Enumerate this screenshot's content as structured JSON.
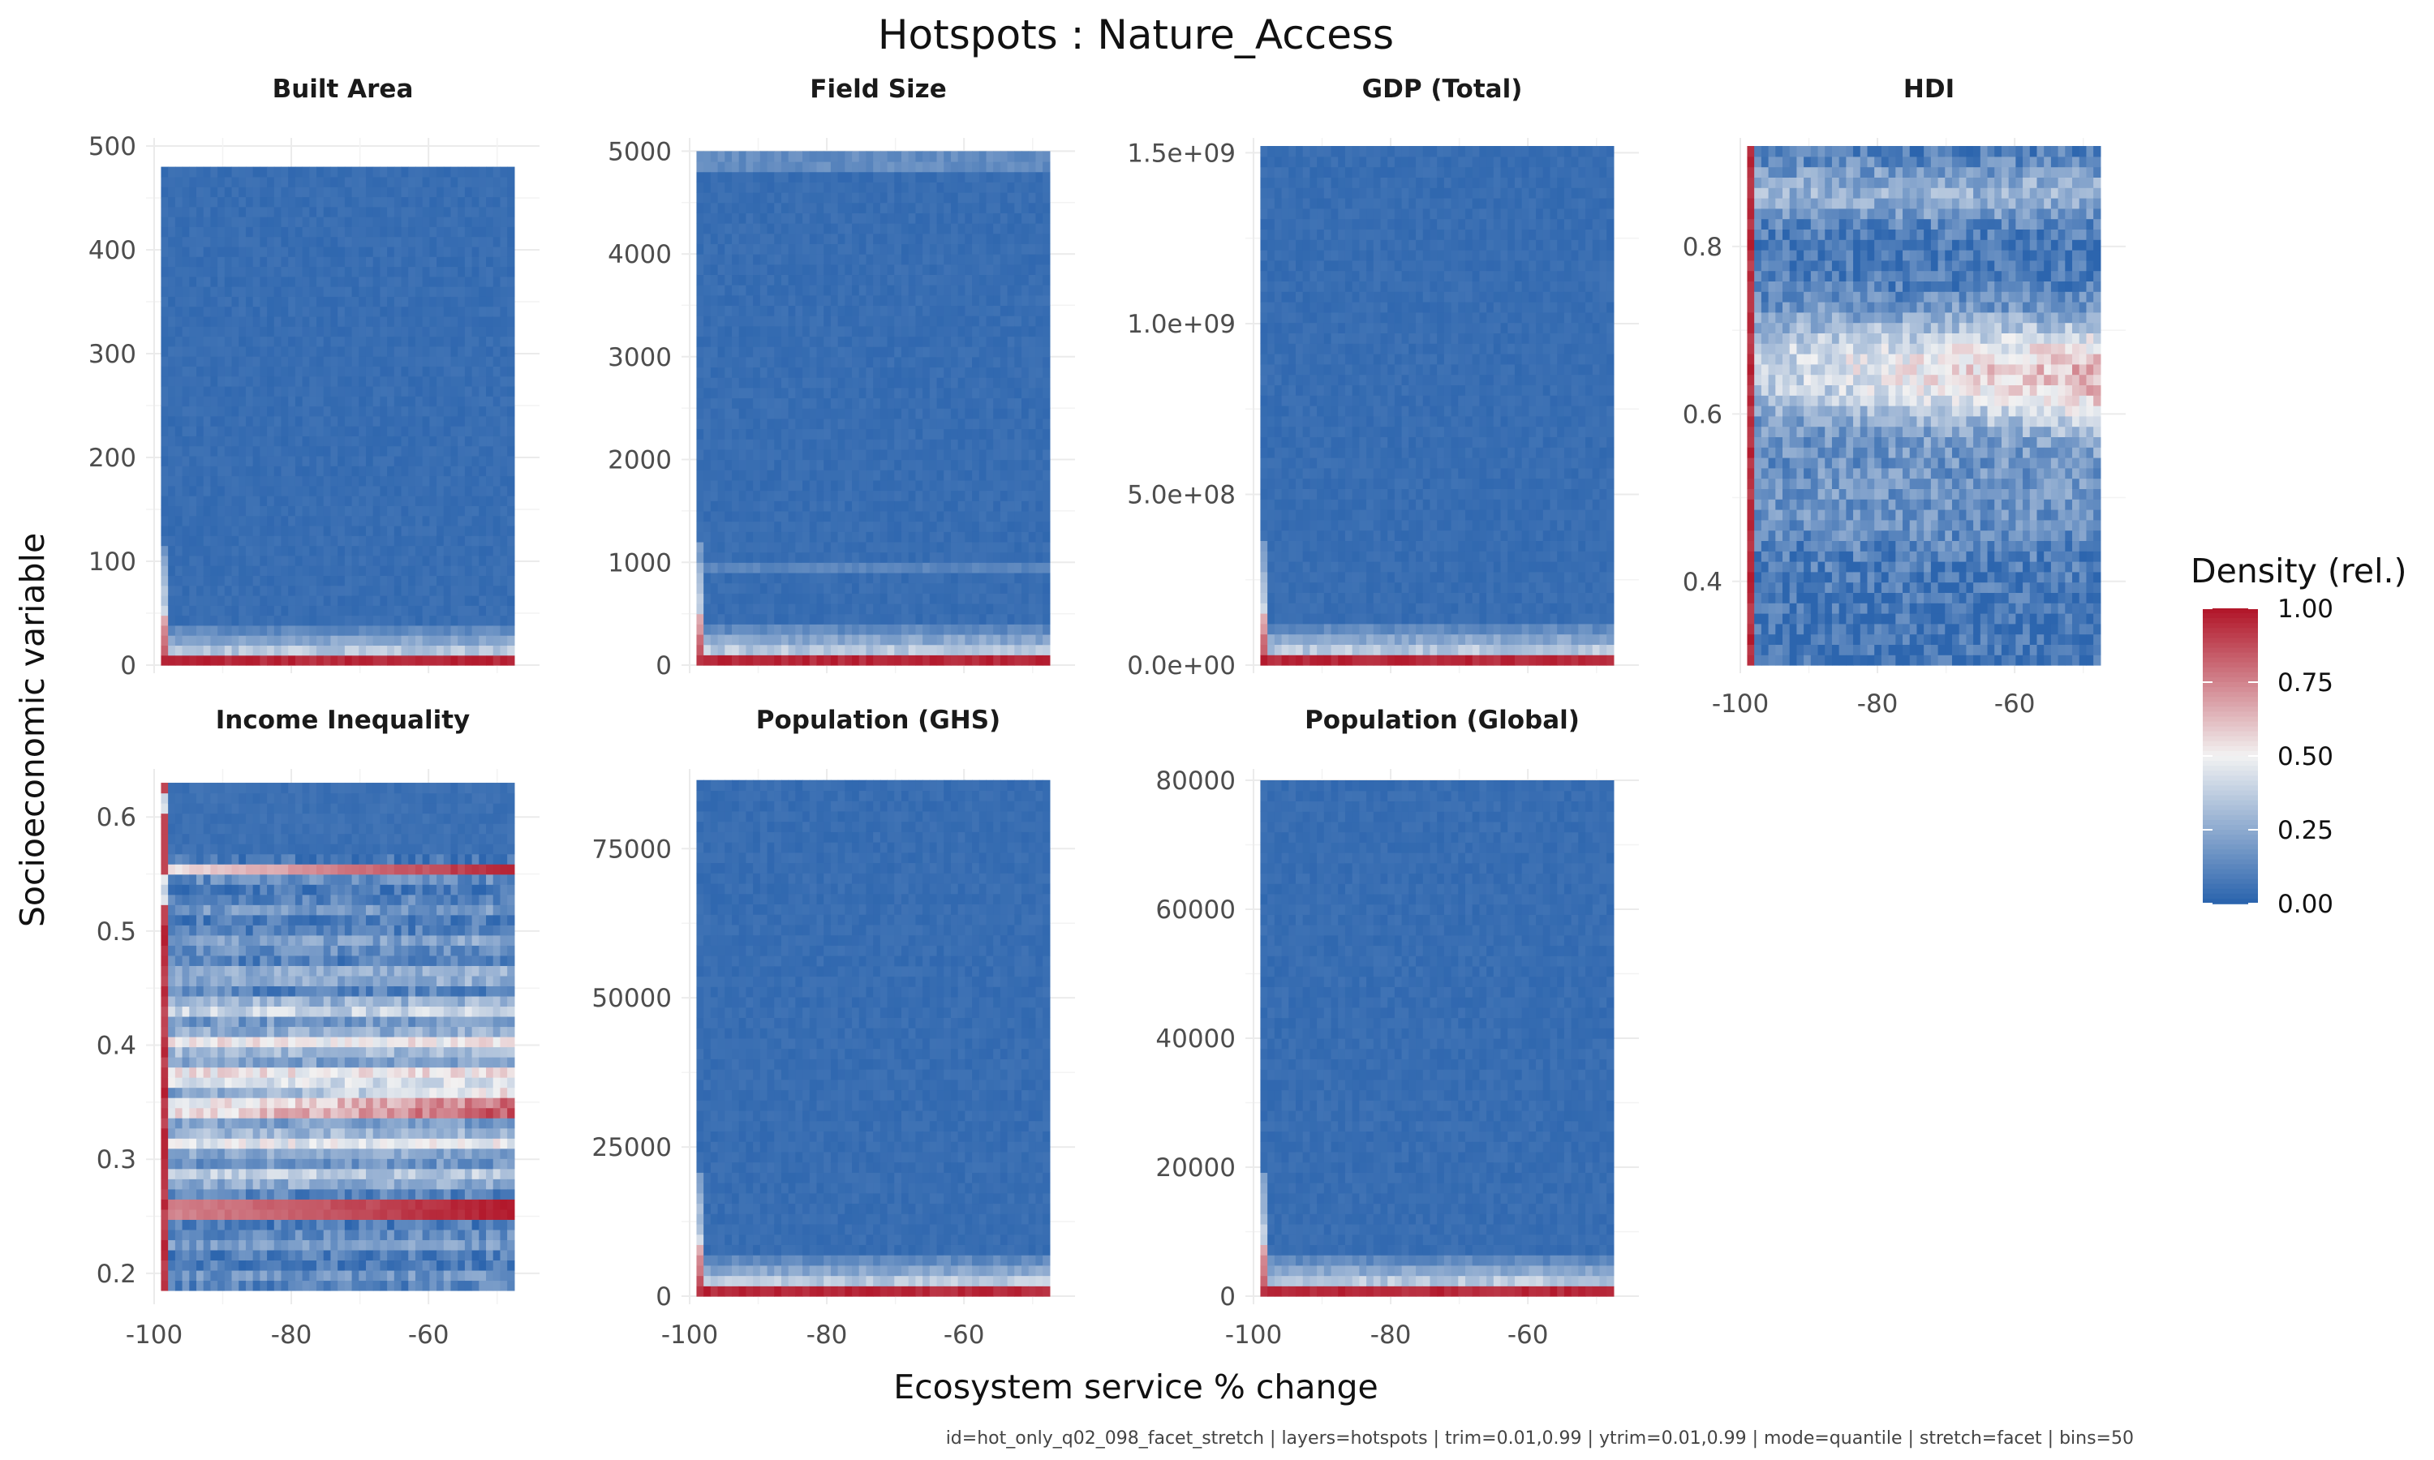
{
  "chart_data": {
    "type": "heatmap",
    "title": "Hotspots : Nature_Access",
    "xlabel": "Ecosystem service % change",
    "ylabel": "Socioeconomic variable",
    "caption": "id=hot_only_q02_098_facet_stretch | layers=hotspots | trim=0.01,0.99 | ytrim=0.01,0.99 | mode=quantile | stretch=facet | bins=50",
    "xlim": [
      -100,
      -45
    ],
    "x_ticks": [
      "-100",
      "-80",
      "-60"
    ],
    "x_tick_values": [
      -100,
      -80,
      -60
    ],
    "grid": true,
    "bins": 50,
    "legend": {
      "title": "Density (rel.)",
      "position": "right",
      "ticks": [
        "0.00",
        "0.25",
        "0.50",
        "0.75",
        "1.00"
      ],
      "tick_values": [
        0,
        0.25,
        0.5,
        0.75,
        1.0
      ],
      "colors": {
        "low": "#2c65ae",
        "mid": "#f2f2f2",
        "high": "#b2182b"
      }
    },
    "panels": [
      {
        "label": "Built Area",
        "pattern": "bottom",
        "ylim": [
          0,
          500
        ],
        "y_data": [
          0,
          480
        ],
        "y_ticks": [
          "0",
          "100",
          "200",
          "300",
          "400",
          "500"
        ],
        "y_tick_values": [
          0,
          100,
          200,
          300,
          400,
          500
        ]
      },
      {
        "label": "Field Size",
        "pattern": "bottom_band",
        "ylim": [
          0,
          5050
        ],
        "y_data": [
          0,
          5000
        ],
        "y_ticks": [
          "0",
          "1000",
          "2000",
          "3000",
          "4000",
          "5000"
        ],
        "y_tick_values": [
          0,
          1000,
          2000,
          3000,
          4000,
          5000
        ]
      },
      {
        "label": "GDP (Total)",
        "pattern": "bottom",
        "ylim": [
          0,
          1520000000.0
        ],
        "y_data": [
          0,
          1520000000.0
        ],
        "y_ticks": [
          "0.0e+00",
          "5.0e+08",
          "1.0e+09",
          "1.5e+09"
        ],
        "y_tick_values": [
          0,
          500000000.0,
          1000000000.0,
          1500000000.0
        ]
      },
      {
        "label": "HDI",
        "pattern": "hdi",
        "ylim": [
          0.3,
          0.92
        ],
        "y_data": [
          0.3,
          0.92
        ],
        "y_ticks": [
          "0.4",
          "0.6",
          "0.8"
        ],
        "y_tick_values": [
          0.4,
          0.6,
          0.8
        ]
      },
      {
        "label": "Income Inequality",
        "pattern": "inequality",
        "ylim": [
          0.18,
          0.635
        ],
        "y_data": [
          0.185,
          0.63
        ],
        "y_ticks": [
          "0.2",
          "0.3",
          "0.4",
          "0.5",
          "0.6"
        ],
        "y_tick_values": [
          0.2,
          0.3,
          0.4,
          0.5,
          0.6
        ]
      },
      {
        "label": "Population (GHS)",
        "pattern": "bottom",
        "ylim": [
          0,
          87000
        ],
        "y_data": [
          0,
          86500
        ],
        "y_ticks": [
          "0",
          "25000",
          "50000",
          "75000"
        ],
        "y_tick_values": [
          0,
          25000,
          50000,
          75000
        ]
      },
      {
        "label": "Population (Global)",
        "pattern": "bottom",
        "ylim": [
          0,
          80500
        ],
        "y_data": [
          0,
          80000
        ],
        "y_ticks": [
          "0",
          "20000",
          "40000",
          "60000",
          "80000"
        ],
        "y_tick_values": [
          0,
          20000,
          40000,
          60000,
          80000
        ]
      }
    ]
  }
}
